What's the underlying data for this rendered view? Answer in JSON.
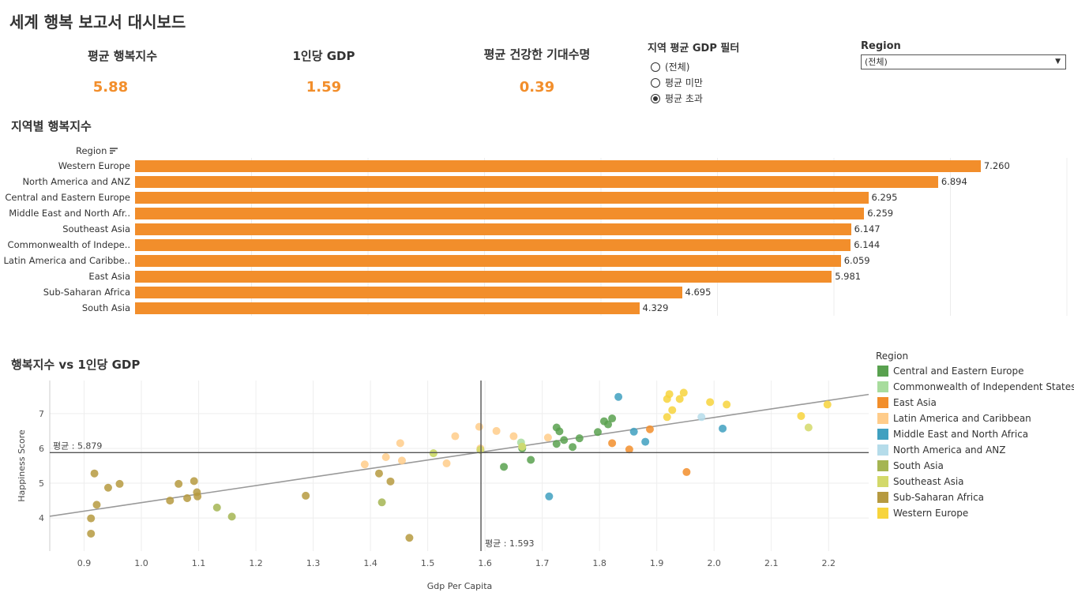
{
  "dashboard": {
    "title": "세계 행복 보고서 대시보드"
  },
  "kpis": [
    {
      "label": "평균 행복지수",
      "value": "5.88"
    },
    {
      "label": "1인당 GDP",
      "value": "1.59"
    },
    {
      "label": "평균 건강한 기대수명",
      "value": "0.39"
    }
  ],
  "gdp_filter": {
    "title": "지역 평균 GDP 필터",
    "options": [
      "(전체)",
      "평균 미만",
      "평균 초과"
    ],
    "selected_index": 2
  },
  "region_filter": {
    "label": "Region",
    "value": "(전체)"
  },
  "accent_color": "#f28e2b",
  "chart_data": [
    {
      "type": "bar",
      "title": "지역별 행복지수",
      "axis_header": "Region",
      "categories": [
        "Western Europe",
        "North America and ANZ",
        "Central and Eastern Europe",
        "Middle East and North Afr..",
        "Southeast Asia",
        "Commonwealth of Indepe..",
        "Latin America and Caribbe..",
        "East Asia",
        "Sub-Saharan Africa",
        "South Asia"
      ],
      "values": [
        7.26,
        6.894,
        6.295,
        6.259,
        6.147,
        6.144,
        6.059,
        5.981,
        4.695,
        4.329
      ],
      "value_labels": [
        "7.260",
        "6.894",
        "6.295",
        "6.259",
        "6.147",
        "6.144",
        "6.059",
        "5.981",
        "4.695",
        "4.329"
      ],
      "xlim": [
        0,
        8.0
      ],
      "color": "#f28e2b"
    },
    {
      "type": "scatter",
      "title": "행복지수 vs 1인당 GDP",
      "xlabel": "Gdp Per Capita",
      "ylabel": "Happiness Score",
      "xlim": [
        0.84,
        2.27
      ],
      "ylim": [
        3.05,
        7.95
      ],
      "x_ticks": [
        0.9,
        1.0,
        1.1,
        1.2,
        1.3,
        1.4,
        1.5,
        1.6,
        1.7,
        1.8,
        1.9,
        2.0,
        2.1,
        2.2
      ],
      "x_tick_labels": [
        "0.9",
        "1.0",
        "1.1",
        "1.2",
        "1.3",
        "1.4",
        "1.5",
        "1.6",
        "1.7",
        "1.8",
        "1.9",
        "2.0",
        "2.1",
        "2.2"
      ],
      "y_ticks": [
        4,
        5,
        6,
        7
      ],
      "y_tick_labels": [
        "4",
        "5",
        "6",
        "7"
      ],
      "ref_lines": {
        "y": 5.879,
        "y_label": "평균 : 5.879",
        "x": 1.593,
        "x_label": "평균 : 1.593"
      },
      "trend_line": [
        [
          0.84,
          4.05
        ],
        [
          2.27,
          7.55
        ]
      ],
      "legend_title": "Region",
      "series": [
        {
          "name": "Central and Eastern Europe",
          "color": "#59a14f",
          "points": [
            [
              1.633,
              5.47
            ],
            [
              1.68,
              5.67
            ],
            [
              1.725,
              6.6
            ],
            [
              1.73,
              6.49
            ],
            [
              1.738,
              6.24
            ],
            [
              1.725,
              6.13
            ],
            [
              1.753,
              6.04
            ],
            [
              1.765,
              6.29
            ],
            [
              1.797,
              6.47
            ],
            [
              1.808,
              6.78
            ],
            [
              1.815,
              6.69
            ],
            [
              1.822,
              6.86
            ],
            [
              1.665,
              6.0
            ]
          ]
        },
        {
          "name": "Commonwealth of Independent States",
          "color": "#a8dc9d",
          "points": [
            [
              1.663,
              6.17
            ],
            [
              1.592,
              5.96
            ],
            [
              1.51,
              5.86
            ],
            [
              1.665,
              6.05
            ]
          ]
        },
        {
          "name": "East Asia",
          "color": "#f28e2b",
          "points": [
            [
              1.822,
              6.15
            ],
            [
              1.852,
              5.97
            ],
            [
              1.888,
              6.55
            ],
            [
              1.952,
              5.32
            ]
          ]
        },
        {
          "name": "Latin America and Caribbean",
          "color": "#ffcc8a",
          "points": [
            [
              1.452,
              6.15
            ],
            [
              1.427,
              5.75
            ],
            [
              1.455,
              5.65
            ],
            [
              1.39,
              5.54
            ],
            [
              1.533,
              5.57
            ],
            [
              1.548,
              6.35
            ],
            [
              1.59,
              6.62
            ],
            [
              1.62,
              6.5
            ],
            [
              1.65,
              6.35
            ],
            [
              1.71,
              6.31
            ],
            [
              1.592,
              6.0
            ]
          ]
        },
        {
          "name": "Middle East and North Africa",
          "color": "#40a0c0",
          "points": [
            [
              1.833,
              7.48
            ],
            [
              1.86,
              6.48
            ],
            [
              1.88,
              6.19
            ],
            [
              1.712,
              4.62
            ],
            [
              2.015,
              6.57
            ]
          ]
        },
        {
          "name": "North America and ANZ",
          "color": "#b5dcea",
          "points": [
            [
              1.978,
              6.9
            ]
          ]
        },
        {
          "name": "South Asia",
          "color": "#a5b552",
          "points": [
            [
              1.132,
              4.3
            ],
            [
              1.158,
              4.04
            ],
            [
              1.42,
              4.45
            ]
          ]
        },
        {
          "name": "Southeast Asia",
          "color": "#d3d96a",
          "points": [
            [
              1.665,
              6.05
            ],
            [
              1.592,
              5.96
            ],
            [
              2.165,
              6.6
            ],
            [
              1.51,
              5.86
            ]
          ]
        },
        {
          "name": "Sub-Saharan Africa",
          "color": "#b69a40",
          "points": [
            [
              0.912,
              3.99
            ],
            [
              0.912,
              3.55
            ],
            [
              0.918,
              5.28
            ],
            [
              0.922,
              4.38
            ],
            [
              0.942,
              4.87
            ],
            [
              0.962,
              4.98
            ],
            [
              1.05,
              4.5
            ],
            [
              1.065,
              4.98
            ],
            [
              1.08,
              4.57
            ],
            [
              1.092,
              5.06
            ],
            [
              1.097,
              4.74
            ],
            [
              1.098,
              4.62
            ],
            [
              1.287,
              4.64
            ],
            [
              1.415,
              5.28
            ],
            [
              1.435,
              5.05
            ],
            [
              1.468,
              3.43
            ]
          ]
        },
        {
          "name": "Western Europe",
          "color": "#f7d43c",
          "points": [
            [
              1.918,
              6.9
            ],
            [
              1.918,
              7.42
            ],
            [
              1.922,
              7.56
            ],
            [
              1.927,
              7.1
            ],
            [
              1.94,
              7.42
            ],
            [
              1.947,
              7.6
            ],
            [
              1.993,
              7.33
            ],
            [
              2.022,
              7.26
            ],
            [
              2.152,
              6.93
            ],
            [
              2.198,
              7.26
            ]
          ]
        }
      ]
    }
  ]
}
